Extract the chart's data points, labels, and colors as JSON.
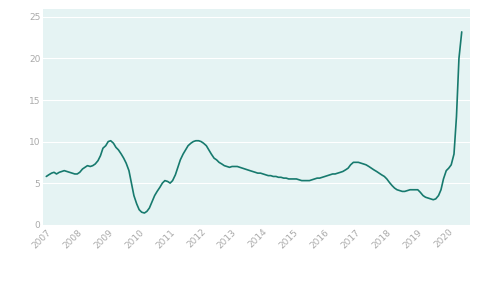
{
  "line_color": "#177a6e",
  "bg_color": "#e5f3f3",
  "fig_bg": "#ffffff",
  "grid_color": "#ffffff",
  "tick_label_color": "#aaaaaa",
  "ylim": [
    0,
    26
  ],
  "yticks": [
    0,
    5,
    10,
    15,
    20,
    25
  ],
  "x_labels": [
    "2007",
    "2008",
    "2009",
    "2010",
    "2011",
    "2012",
    "2013",
    "2014",
    "2015",
    "2016",
    "2017",
    "2018",
    "2019",
    "2020"
  ],
  "xlim": [
    2006.9,
    2020.7
  ],
  "dates": [
    2007.0,
    2007.08,
    2007.17,
    2007.25,
    2007.33,
    2007.42,
    2007.5,
    2007.58,
    2007.67,
    2007.75,
    2007.83,
    2007.92,
    2008.0,
    2008.08,
    2008.17,
    2008.25,
    2008.33,
    2008.42,
    2008.5,
    2008.58,
    2008.67,
    2008.75,
    2008.83,
    2008.92,
    2009.0,
    2009.08,
    2009.17,
    2009.25,
    2009.33,
    2009.42,
    2009.5,
    2009.58,
    2009.67,
    2009.75,
    2009.83,
    2009.92,
    2010.0,
    2010.08,
    2010.17,
    2010.25,
    2010.33,
    2010.42,
    2010.5,
    2010.58,
    2010.67,
    2010.75,
    2010.83,
    2010.92,
    2011.0,
    2011.08,
    2011.17,
    2011.25,
    2011.33,
    2011.42,
    2011.5,
    2011.58,
    2011.67,
    2011.75,
    2011.83,
    2011.92,
    2012.0,
    2012.08,
    2012.17,
    2012.25,
    2012.33,
    2012.42,
    2012.5,
    2012.58,
    2012.67,
    2012.75,
    2012.83,
    2012.92,
    2013.0,
    2013.08,
    2013.17,
    2013.25,
    2013.33,
    2013.42,
    2013.5,
    2013.58,
    2013.67,
    2013.75,
    2013.83,
    2013.92,
    2014.0,
    2014.08,
    2014.17,
    2014.25,
    2014.33,
    2014.42,
    2014.5,
    2014.58,
    2014.67,
    2014.75,
    2014.83,
    2014.92,
    2015.0,
    2015.08,
    2015.17,
    2015.25,
    2015.33,
    2015.42,
    2015.5,
    2015.58,
    2015.67,
    2015.75,
    2015.83,
    2015.92,
    2016.0,
    2016.08,
    2016.17,
    2016.25,
    2016.33,
    2016.42,
    2016.5,
    2016.58,
    2016.67,
    2016.75,
    2016.83,
    2016.92,
    2017.0,
    2017.08,
    2017.17,
    2017.25,
    2017.33,
    2017.42,
    2017.5,
    2017.58,
    2017.67,
    2017.75,
    2017.83,
    2017.92,
    2018.0,
    2018.08,
    2018.17,
    2018.25,
    2018.33,
    2018.42,
    2018.5,
    2018.58,
    2018.67,
    2018.75,
    2018.83,
    2018.92,
    2019.0,
    2019.08,
    2019.17,
    2019.25,
    2019.33,
    2019.42,
    2019.5,
    2019.58,
    2019.67,
    2019.75,
    2019.83,
    2019.92,
    2020.0,
    2020.08,
    2020.17,
    2020.25,
    2020.33,
    2020.42
  ],
  "values": [
    5.8,
    6.0,
    6.2,
    6.3,
    6.1,
    6.3,
    6.4,
    6.5,
    6.4,
    6.3,
    6.2,
    6.1,
    6.1,
    6.3,
    6.7,
    6.9,
    7.1,
    7.0,
    7.1,
    7.3,
    7.7,
    8.3,
    9.2,
    9.5,
    10.0,
    10.1,
    9.8,
    9.3,
    9.0,
    8.5,
    8.0,
    7.4,
    6.5,
    5.0,
    3.5,
    2.5,
    1.8,
    1.5,
    1.4,
    1.6,
    2.0,
    2.8,
    3.5,
    4.0,
    4.5,
    5.0,
    5.3,
    5.2,
    5.0,
    5.3,
    6.0,
    6.9,
    7.8,
    8.5,
    9.0,
    9.5,
    9.8,
    10.0,
    10.1,
    10.1,
    10.0,
    9.8,
    9.5,
    9.0,
    8.5,
    8.0,
    7.8,
    7.5,
    7.3,
    7.1,
    7.0,
    6.9,
    7.0,
    7.0,
    7.0,
    6.9,
    6.8,
    6.7,
    6.6,
    6.5,
    6.4,
    6.3,
    6.2,
    6.2,
    6.1,
    6.0,
    5.9,
    5.9,
    5.8,
    5.8,
    5.7,
    5.7,
    5.6,
    5.6,
    5.5,
    5.5,
    5.5,
    5.5,
    5.4,
    5.3,
    5.3,
    5.3,
    5.3,
    5.4,
    5.5,
    5.6,
    5.6,
    5.7,
    5.8,
    5.9,
    6.0,
    6.1,
    6.1,
    6.2,
    6.3,
    6.4,
    6.6,
    6.8,
    7.2,
    7.5,
    7.5,
    7.5,
    7.4,
    7.3,
    7.2,
    7.0,
    6.8,
    6.6,
    6.4,
    6.2,
    6.0,
    5.8,
    5.5,
    5.1,
    4.7,
    4.4,
    4.2,
    4.1,
    4.0,
    4.0,
    4.1,
    4.2,
    4.2,
    4.2,
    4.2,
    3.9,
    3.5,
    3.3,
    3.2,
    3.1,
    3.0,
    3.1,
    3.5,
    4.2,
    5.5,
    6.5,
    6.8,
    7.2,
    8.5,
    13.0,
    20.0,
    23.2
  ]
}
